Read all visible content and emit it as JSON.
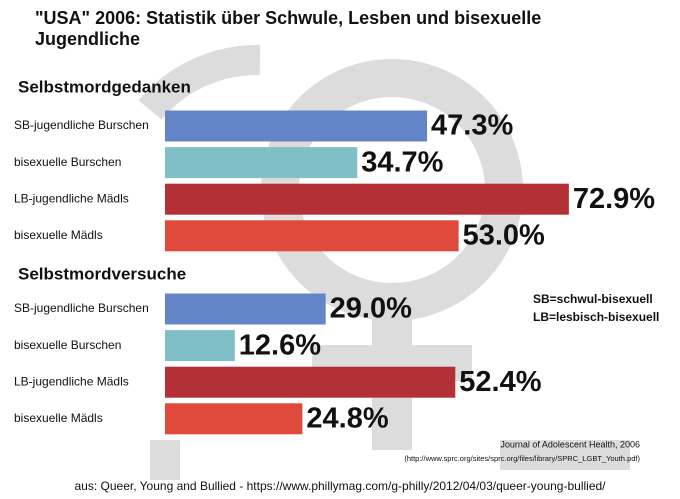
{
  "title": "\"USA\" 2006: Statistik über Schwule, Lesben und bisexuelle Jugendliche",
  "chart_data": [
    {
      "type": "bar",
      "title": "Selbstmordgedanken",
      "categories": [
        "SB-jugendliche Burschen",
        "bisexuelle Burschen",
        "LB-jugendliche Mädls",
        "bisexuelle Mädls"
      ],
      "values": [
        47.3,
        34.7,
        72.9,
        53.0
      ],
      "value_labels": [
        "47.3%",
        "34.7%",
        "72.9%",
        "53.0%"
      ],
      "colors": [
        "#6384c6",
        "#80bfc7",
        "#b33136",
        "#e04a3c"
      ]
    },
    {
      "type": "bar",
      "title": "Selbstmordversuche",
      "categories": [
        "SB-jugendliche Burschen",
        "bisexuelle Burschen",
        "LB-jugendliche Mädls",
        "bisexuelle Mädls"
      ],
      "values": [
        29.0,
        12.6,
        52.4,
        24.8
      ],
      "value_labels": [
        "29.0%",
        "12.6%",
        "52.4%",
        "24.8%"
      ],
      "colors": [
        "#6384c6",
        "#80bfc7",
        "#b33136",
        "#e04a3c"
      ]
    }
  ],
  "notes": [
    "SB=schwul-bisexuell",
    "LB=lesbisch-bisexuell"
  ],
  "source": [
    "Journal of Adolescent Health, 2006",
    "(http://www.sprc.org/sites/sprc.org/files/library/SPRC_LGBT_Youth.pdf)"
  ],
  "footer": "aus: Queer, Young and Bullied - https://www.phillymag.com/g-philly/2012/04/03/queer-young-bullied/"
}
